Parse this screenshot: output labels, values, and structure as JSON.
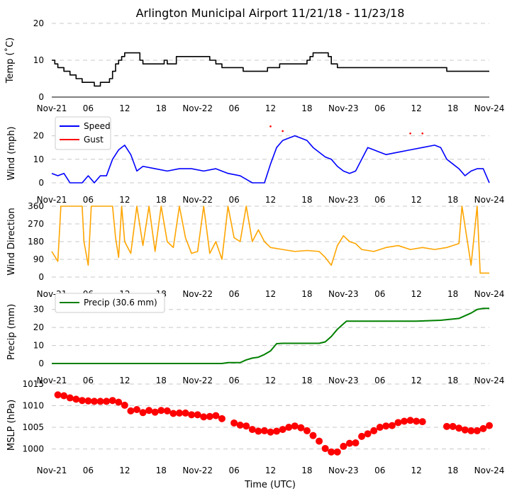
{
  "title": "Arlington Municipal Airport 11/21/18 - 11/23/18",
  "xlabel": "Time (UTC)",
  "xticks": [
    "Nov-21",
    "06",
    "12",
    "18",
    "Nov-22",
    "06",
    "12",
    "18",
    "Nov-23",
    "06",
    "12",
    "18",
    "Nov-24"
  ],
  "colors": {
    "black": "#000000",
    "speed": "#0000ff",
    "gust": "#ff0000",
    "dir": "#ffa500",
    "precip": "#008000",
    "mslp": "#ff0000",
    "grid": "#c8c8c8"
  },
  "chart_data": [
    {
      "type": "line",
      "name": "temperature",
      "ylabel": "Temp (˚C)",
      "ylim": [
        0,
        20
      ],
      "yticks": [
        "0",
        "10",
        "20"
      ],
      "x_unit": "hours since Nov-21 00 UTC",
      "series": [
        {
          "name": "Temp",
          "points": [
            [
              0,
              10
            ],
            [
              0.5,
              9
            ],
            [
              1,
              8
            ],
            [
              2,
              7
            ],
            [
              3,
              6
            ],
            [
              4,
              5
            ],
            [
              5,
              4
            ],
            [
              6,
              4
            ],
            [
              7,
              3
            ],
            [
              8,
              4
            ],
            [
              9,
              4
            ],
            [
              9.5,
              5
            ],
            [
              10,
              7
            ],
            [
              10.5,
              9
            ],
            [
              11,
              10
            ],
            [
              11.5,
              11
            ],
            [
              12,
              12
            ],
            [
              14,
              12
            ],
            [
              14.5,
              10
            ],
            [
              15,
              9
            ],
            [
              18,
              9
            ],
            [
              18.5,
              10
            ],
            [
              19,
              9
            ],
            [
              20,
              9
            ],
            [
              20.5,
              11
            ],
            [
              24,
              11
            ],
            [
              26,
              10
            ],
            [
              27,
              9
            ],
            [
              28,
              8
            ],
            [
              31,
              8
            ],
            [
              31.5,
              7
            ],
            [
              35,
              7
            ],
            [
              35.5,
              8
            ],
            [
              37,
              8
            ],
            [
              37.5,
              9
            ],
            [
              41,
              9
            ],
            [
              42,
              10
            ],
            [
              42.5,
              11
            ],
            [
              43,
              12
            ],
            [
              45,
              12
            ],
            [
              45.5,
              11
            ],
            [
              46,
              9
            ],
            [
              47,
              8
            ],
            [
              56,
              8
            ],
            [
              58,
              8
            ],
            [
              64,
              8
            ],
            [
              65,
              7
            ],
            [
              72,
              7
            ]
          ]
        }
      ]
    },
    {
      "type": "line",
      "name": "wind",
      "ylabel": "Wind (mph)",
      "ylim": [
        0,
        25
      ],
      "yticks": [
        "0",
        "10",
        "20"
      ],
      "legend": [
        "Speed",
        "Gust"
      ],
      "series": [
        {
          "name": "Speed",
          "points": [
            [
              0,
              4
            ],
            [
              1,
              3
            ],
            [
              2,
              4
            ],
            [
              3,
              0
            ],
            [
              5,
              0
            ],
            [
              6,
              3
            ],
            [
              7,
              0
            ],
            [
              8,
              3
            ],
            [
              9,
              3
            ],
            [
              10,
              10
            ],
            [
              11,
              14
            ],
            [
              12,
              16
            ],
            [
              13,
              12
            ],
            [
              14,
              5
            ],
            [
              15,
              7
            ],
            [
              17,
              6
            ],
            [
              19,
              5
            ],
            [
              21,
              6
            ],
            [
              23,
              6
            ],
            [
              25,
              5
            ],
            [
              27,
              6
            ],
            [
              29,
              4
            ],
            [
              31,
              3
            ],
            [
              33,
              0
            ],
            [
              35,
              0
            ],
            [
              36,
              8
            ],
            [
              37,
              15
            ],
            [
              38,
              18
            ],
            [
              39,
              19
            ],
            [
              40,
              20
            ],
            [
              41,
              19
            ],
            [
              42,
              18
            ],
            [
              43,
              15
            ],
            [
              44,
              13
            ],
            [
              45,
              11
            ],
            [
              46,
              10
            ],
            [
              47,
              7
            ],
            [
              48,
              5
            ],
            [
              49,
              4
            ],
            [
              50,
              5
            ],
            [
              51,
              10
            ],
            [
              52,
              15
            ],
            [
              53,
              14
            ],
            [
              54,
              13
            ],
            [
              55,
              12
            ],
            [
              57,
              13
            ],
            [
              59,
              14
            ],
            [
              61,
              15
            ],
            [
              63,
              16
            ],
            [
              64,
              15
            ],
            [
              65,
              10
            ],
            [
              66,
              8
            ],
            [
              67,
              6
            ],
            [
              68,
              3
            ],
            [
              69,
              5
            ],
            [
              70,
              6
            ],
            [
              71,
              6
            ],
            [
              72,
              0
            ]
          ]
        },
        {
          "name": "Gust",
          "points": [
            [
              36,
              24
            ],
            [
              38,
              22
            ],
            [
              59,
              21
            ],
            [
              61,
              21
            ]
          ]
        }
      ]
    },
    {
      "type": "line",
      "name": "wind_direction",
      "ylabel": "Wind Direction",
      "ylim": [
        0,
        360
      ],
      "yticks": [
        "0",
        "90",
        "180",
        "270",
        "360"
      ],
      "series": [
        {
          "name": "Direction",
          "points": [
            [
              0,
              130
            ],
            [
              1,
              80
            ],
            [
              1.5,
              360
            ],
            [
              5,
              360
            ],
            [
              5.3,
              180
            ],
            [
              6,
              60
            ],
            [
              6.5,
              360
            ],
            [
              10,
              360
            ],
            [
              10.5,
              200
            ],
            [
              11,
              100
            ],
            [
              11.5,
              360
            ],
            [
              12,
              180
            ],
            [
              13,
              120
            ],
            [
              14,
              360
            ],
            [
              15,
              160
            ],
            [
              16,
              360
            ],
            [
              17,
              130
            ],
            [
              18,
              360
            ],
            [
              19,
              180
            ],
            [
              20,
              150
            ],
            [
              21,
              360
            ],
            [
              22,
              200
            ],
            [
              23,
              120
            ],
            [
              24,
              130
            ],
            [
              25,
              360
            ],
            [
              26,
              120
            ],
            [
              27,
              180
            ],
            [
              28,
              90
            ],
            [
              29,
              360
            ],
            [
              30,
              200
            ],
            [
              31,
              180
            ],
            [
              32,
              360
            ],
            [
              33,
              180
            ],
            [
              34,
              240
            ],
            [
              35,
              180
            ],
            [
              36,
              150
            ],
            [
              38,
              140
            ],
            [
              40,
              130
            ],
            [
              42,
              135
            ],
            [
              44,
              130
            ],
            [
              45,
              100
            ],
            [
              46,
              60
            ],
            [
              47,
              160
            ],
            [
              48,
              210
            ],
            [
              49,
              180
            ],
            [
              50,
              170
            ],
            [
              51,
              140
            ],
            [
              53,
              130
            ],
            [
              55,
              150
            ],
            [
              57,
              160
            ],
            [
              59,
              140
            ],
            [
              61,
              150
            ],
            [
              63,
              140
            ],
            [
              65,
              150
            ],
            [
              67,
              170
            ],
            [
              67.5,
              360
            ],
            [
              69,
              60
            ],
            [
              70,
              360
            ],
            [
              70.5,
              20
            ],
            [
              72,
              20
            ]
          ]
        }
      ]
    },
    {
      "type": "line",
      "name": "precipitation",
      "ylabel": "Precip (mm)",
      "ylim": [
        0,
        35
      ],
      "yticks": [
        "0",
        "10",
        "20",
        "30"
      ],
      "legend": [
        "Precip (30.6 mm)"
      ],
      "series": [
        {
          "name": "Precip (30.6 mm)",
          "points": [
            [
              0,
              0
            ],
            [
              28,
              0
            ],
            [
              29,
              0.5
            ],
            [
              31,
              0.5
            ],
            [
              32,
              2
            ],
            [
              33,
              3
            ],
            [
              34,
              3.5
            ],
            [
              35,
              5
            ],
            [
              36,
              7
            ],
            [
              37,
              11
            ],
            [
              38,
              11.2
            ],
            [
              44,
              11.2
            ],
            [
              45,
              12
            ],
            [
              46,
              15
            ],
            [
              47,
              19
            ],
            [
              48,
              22
            ],
            [
              48.5,
              23.5
            ],
            [
              56,
              23.5
            ],
            [
              60,
              23.5
            ],
            [
              64,
              24
            ],
            [
              67,
              25
            ],
            [
              69,
              28
            ],
            [
              70,
              30
            ],
            [
              71,
              30.6
            ],
            [
              72,
              30.6
            ]
          ]
        }
      ]
    },
    {
      "type": "scatter",
      "name": "mslp",
      "ylabel": "MSLP (hPa)",
      "ylim": [
        996,
        1015
      ],
      "yticks": [
        "1000",
        "1005",
        "1010",
        "1015"
      ],
      "series": [
        {
          "name": "MSLP",
          "points": [
            [
              1,
              1012.5
            ],
            [
              2,
              1012.3
            ],
            [
              3,
              1011.8
            ],
            [
              4,
              1011.5
            ],
            [
              5,
              1011.2
            ],
            [
              6,
              1011.1
            ],
            [
              7,
              1011.0
            ],
            [
              8,
              1011.0
            ],
            [
              9,
              1011.0
            ],
            [
              10,
              1011.2
            ],
            [
              11,
              1010.8
            ],
            [
              12,
              1010.1
            ],
            [
              13,
              1008.8
            ],
            [
              14,
              1009.1
            ],
            [
              15,
              1008.4
            ],
            [
              16,
              1008.9
            ],
            [
              17,
              1008.5
            ],
            [
              18,
              1008.9
            ],
            [
              19,
              1008.8
            ],
            [
              20,
              1008.2
            ],
            [
              21,
              1008.3
            ],
            [
              22,
              1008.3
            ],
            [
              23,
              1007.9
            ],
            [
              24,
              1007.9
            ],
            [
              25,
              1007.4
            ],
            [
              26,
              1007.5
            ],
            [
              27,
              1007.7
            ],
            [
              28,
              1007.0
            ],
            [
              30,
              1006.0
            ],
            [
              31,
              1005.5
            ],
            [
              32,
              1005.3
            ],
            [
              33,
              1004.5
            ],
            [
              34,
              1004.1
            ],
            [
              35,
              1004.2
            ],
            [
              36,
              1003.9
            ],
            [
              37,
              1004.1
            ],
            [
              38,
              1004.5
            ],
            [
              39,
              1005.0
            ],
            [
              40,
              1005.3
            ],
            [
              41,
              1004.9
            ],
            [
              42,
              1004.2
            ],
            [
              43,
              1003.1
            ],
            [
              44,
              1001.8
            ],
            [
              45,
              1000.1
            ],
            [
              46,
              999.3
            ],
            [
              47,
              999.3
            ],
            [
              48,
              1000.6
            ],
            [
              49,
              1001.3
            ],
            [
              50,
              1001.4
            ],
            [
              51,
              1002.9
            ],
            [
              52,
              1003.5
            ],
            [
              53,
              1004.2
            ],
            [
              54,
              1005.0
            ],
            [
              55,
              1005.3
            ],
            [
              56,
              1005.4
            ],
            [
              57,
              1006.1
            ],
            [
              58,
              1006.4
            ],
            [
              59,
              1006.6
            ],
            [
              60,
              1006.4
            ],
            [
              61,
              1006.3
            ],
            [
              65,
              1005.2
            ],
            [
              66,
              1005.2
            ],
            [
              67,
              1004.8
            ],
            [
              68,
              1004.4
            ],
            [
              69,
              1004.2
            ],
            [
              70,
              1004.2
            ],
            [
              71,
              1004.7
            ],
            [
              72,
              1005.4
            ]
          ]
        }
      ]
    }
  ]
}
